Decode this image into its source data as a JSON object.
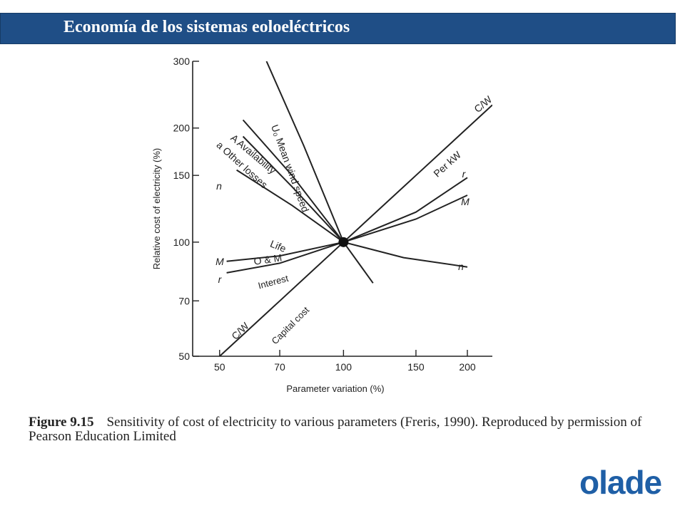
{
  "banner": {
    "title": "Economía de los sistemas eoloeléctricos",
    "color": "#1f4e86"
  },
  "chart_data": {
    "type": "line",
    "xlabel": "Parameter variation (%)",
    "ylabel": "Relative cost of electricity (%)",
    "x_scale": "log",
    "y_scale": "log",
    "xlim": [
      43,
      230
    ],
    "ylim": [
      50,
      300
    ],
    "x_ticks": [
      50,
      70,
      100,
      150,
      200
    ],
    "y_ticks": [
      50,
      70,
      100,
      150,
      200,
      300
    ],
    "grid": false,
    "series": [
      {
        "name": "U₀ Mean wind speed",
        "x": [
          65,
          80,
          100,
          118
        ],
        "y": [
          300,
          180,
          100,
          78
        ],
        "end_label": ""
      },
      {
        "name": "A Availability",
        "x": [
          57,
          75,
          100
        ],
        "y": [
          210,
          150,
          100
        ],
        "end_label": "A"
      },
      {
        "name": "Other losses",
        "x": [
          57,
          75,
          100
        ],
        "y": [
          190,
          140,
          100
        ],
        "end_label": "a"
      },
      {
        "name": "Life",
        "x": [
          55,
          75,
          100,
          140,
          200
        ],
        "y": [
          155,
          125,
          100,
          91,
          86
        ],
        "end_label": "n"
      },
      {
        "name": "O & M",
        "x": [
          52,
          70,
          100,
          150,
          200
        ],
        "y": [
          89,
          92,
          100,
          115,
          133
        ],
        "end_label": "M"
      },
      {
        "name": "Interest",
        "x": [
          52,
          70,
          100,
          150,
          200
        ],
        "y": [
          83,
          88,
          100,
          120,
          148
        ],
        "end_label": "r"
      },
      {
        "name": "C/W",
        "x": [
          50,
          70,
          100,
          150,
          230
        ],
        "y": [
          50,
          70,
          100,
          150,
          230
        ],
        "end_label": "C/W"
      }
    ],
    "annotations": [
      "U₀ Mean wind speed",
      "A Availability",
      "a Other losses",
      "Life",
      "O & M",
      "Interest",
      "Capital cost",
      "Per kW",
      "C/W",
      "C/W",
      "n",
      "n",
      "M",
      "M",
      "r",
      "r"
    ],
    "marker": {
      "x": 100,
      "y": 100
    }
  },
  "caption": {
    "figure": "Figure 9.15",
    "text": "Sensitivity of cost of electricity to various parameters (Freris, 1990). Reproduced by permission of Pearson Education Limited"
  },
  "logo": {
    "text": "olade",
    "color": "#1f5fa6"
  }
}
